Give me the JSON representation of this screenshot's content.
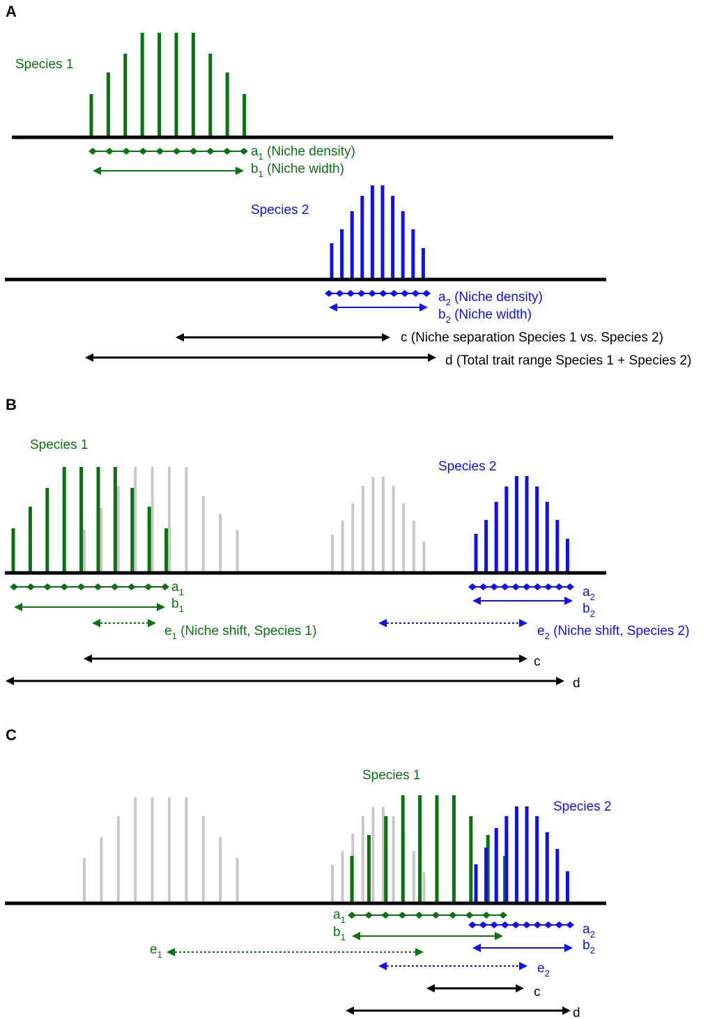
{
  "colors": {
    "species1": "#0a7310",
    "species2": "#1010f0",
    "ghost": "#c8c8c8",
    "axis": "#000000"
  },
  "panels": [
    {
      "letter": "A",
      "species1_label": "Species 1",
      "species2_label": "Species 2",
      "a1": {
        "sym": "a",
        "sub": "1",
        "text": " (Niche density)"
      },
      "b1": {
        "sym": "b",
        "sub": "1",
        "text": " (Niche width)"
      },
      "a2": {
        "sym": "a",
        "sub": "2",
        "text": " (Niche density)"
      },
      "b2": {
        "sym": "b",
        "sub": "2",
        "text": " (Niche width)"
      },
      "c": {
        "sym": "c",
        "text": " (Niche separation Species 1 vs. Species 2)"
      },
      "d": {
        "sym": "d",
        "text": " (Total trait range Species 1 + Species 2)"
      }
    },
    {
      "letter": "B",
      "species1_label": "Species 1",
      "species2_label": "Species 2",
      "a1": {
        "sym": "a",
        "sub": "1"
      },
      "b1": {
        "sym": "b",
        "sub": "1"
      },
      "a2": {
        "sym": "a",
        "sub": "2"
      },
      "b2": {
        "sym": "b",
        "sub": "2"
      },
      "e1": {
        "sym": "e",
        "sub": "1",
        "text": " (Niche shift, Species 1)"
      },
      "e2": {
        "sym": "e",
        "sub": "2",
        "text": " (Niche shift, Species 2)"
      },
      "c": {
        "sym": "c"
      },
      "d": {
        "sym": "d"
      }
    },
    {
      "letter": "C",
      "species1_label": "Species 1",
      "species2_label": "Species 2",
      "a1": {
        "sym": "a",
        "sub": "1"
      },
      "b1": {
        "sym": "b",
        "sub": "1"
      },
      "a2": {
        "sym": "a",
        "sub": "2"
      },
      "b2": {
        "sym": "b",
        "sub": "2"
      },
      "e1": {
        "sym": "e",
        "sub": "1"
      },
      "e2": {
        "sym": "e",
        "sub": "2"
      },
      "c": {
        "sym": "c"
      },
      "d": {
        "sym": "d"
      }
    }
  ]
}
